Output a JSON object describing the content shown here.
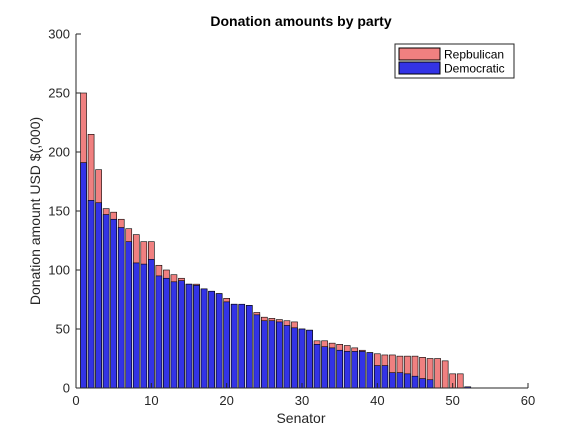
{
  "chart_data": {
    "type": "bar",
    "title": "Donation amounts by party",
    "xlabel": "Senator",
    "ylabel": "Donation amount USD $(,000)",
    "xlim": [
      0,
      60
    ],
    "ylim": [
      0,
      300
    ],
    "xticks": [
      0,
      10,
      20,
      30,
      40,
      50,
      60
    ],
    "yticks": [
      0,
      50,
      100,
      150,
      200,
      250,
      300
    ],
    "legend_position": "top-right",
    "grid": false,
    "x": [
      1,
      2,
      3,
      4,
      5,
      6,
      7,
      8,
      9,
      10,
      11,
      12,
      13,
      14,
      15,
      16,
      17,
      18,
      19,
      20,
      21,
      22,
      23,
      24,
      25,
      26,
      27,
      28,
      29,
      30,
      31,
      32,
      33,
      34,
      35,
      36,
      37,
      38,
      39,
      40,
      41,
      42,
      43,
      44,
      45,
      46,
      47,
      48,
      49,
      50,
      51,
      52
    ],
    "series": [
      {
        "name": "Repbulican",
        "color": "#f08080",
        "values": [
          250,
          215,
          185,
          152,
          149,
          143,
          135,
          130,
          124,
          124,
          104,
          100,
          96,
          93,
          88,
          88,
          84,
          82,
          80,
          76,
          71,
          70,
          70,
          64,
          60,
          59,
          58,
          57,
          56,
          50,
          49,
          40,
          40,
          38,
          37,
          36,
          34,
          32,
          30,
          29,
          28,
          28,
          27,
          27,
          27,
          26,
          25,
          25,
          23,
          12,
          12,
          1
        ]
      },
      {
        "name": "Democratic",
        "color": "#3333e6",
        "values": [
          191,
          159,
          157,
          147,
          143,
          136,
          124,
          106,
          105,
          109,
          95,
          93,
          90,
          91,
          88,
          87,
          84,
          82,
          80,
          73,
          71,
          71,
          70,
          62,
          57,
          57,
          56,
          53,
          51,
          50,
          49,
          37,
          35,
          34,
          32,
          31,
          31,
          31,
          30,
          19,
          19,
          13,
          13,
          12,
          10,
          8,
          7,
          0,
          0,
          0,
          0,
          1
        ]
      }
    ]
  }
}
